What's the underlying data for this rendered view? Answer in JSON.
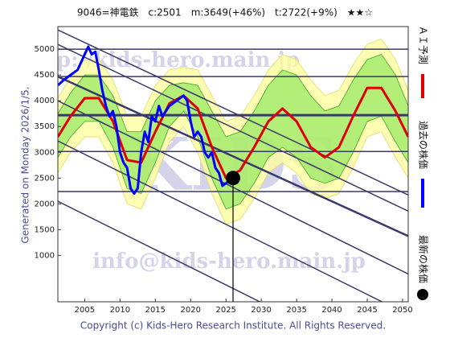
{
  "chart_data": {
    "type": "line",
    "title": "9046=神電鉄　c:2501　m:3649(+46%)　t:2722(+9%)　★★☆",
    "side_text": "Generated on Monday 2026/1/5.",
    "footer": "Copyright (c) Kids-Hero Research Institute. All Rights Reserved.",
    "watermarks": [
      "http://kids-hero.main.jp",
      "KIDS",
      "info@kids-hero.main.jp"
    ],
    "xlim": [
      2001.2,
      2050.8
    ],
    "ylim": [
      100,
      5440
    ],
    "xticks": [
      2005,
      2010,
      2015,
      2020,
      2025,
      2030,
      2035,
      2040,
      2045,
      2050
    ],
    "yticks": [
      1000,
      1500,
      2000,
      2500,
      3000,
      3500,
      4000,
      4500,
      5000
    ],
    "levels": [
      5000,
      4470,
      3720,
      3016,
      2240
    ],
    "trend_lines": [
      {
        "x": [
          2001.2,
          2050.8
        ],
        "values": [
          5375,
          2172
        ]
      },
      {
        "x": [
          2001.2,
          2050.8
        ],
        "values": [
          5094,
          1859
        ]
      },
      {
        "x": [
          2001.2,
          2050.8
        ],
        "values": [
          4469,
          1375
        ]
      },
      {
        "x": [
          2001.2,
          2050.8
        ],
        "values": [
          4000,
          640
        ]
      },
      {
        "x": [
          2001.2,
          2047.1
        ],
        "values": [
          3220,
          100
        ]
      },
      {
        "x": [
          2001.2,
          2029.8
        ],
        "values": [
          2050,
          100
        ]
      }
    ],
    "bands": [
      {
        "color": "#ffff99",
        "x": [
          2001.2,
          2003,
          2005,
          2007,
          2009,
          2011,
          2013,
          2015,
          2017,
          2019,
          2021,
          2023,
          2025,
          2027,
          2029,
          2031,
          2033,
          2035,
          2037,
          2039,
          2041,
          2043,
          2045,
          2047,
          2049,
          2050.8
        ],
        "upper": [
          4050,
          4450,
          4800,
          4800,
          4400,
          3700,
          3700,
          4300,
          4600,
          4650,
          4600,
          4100,
          3600,
          3700,
          4100,
          4600,
          4900,
          4800,
          4400,
          4100,
          4200,
          4700,
          5100,
          5200,
          4800,
          4200
        ],
        "lower": [
          2600,
          3000,
          3300,
          3300,
          2800,
          2000,
          1900,
          2500,
          3200,
          3500,
          3000,
          2200,
          1600,
          1700,
          2100,
          2600,
          2800,
          2600,
          2200,
          2100,
          2200,
          2700,
          3300,
          3400,
          2900,
          2500
        ]
      },
      {
        "color": "#99e866",
        "x": [
          2001.2,
          2003,
          2005,
          2007,
          2009,
          2011,
          2013,
          2015,
          2017,
          2019,
          2021,
          2023,
          2025,
          2027,
          2029,
          2031,
          2033,
          2035,
          2037,
          2039,
          2041,
          2043,
          2045,
          2047,
          2049,
          2050.8
        ],
        "upper": [
          3750,
          4150,
          4500,
          4500,
          4100,
          3400,
          3400,
          4000,
          4300,
          4350,
          4300,
          3800,
          3300,
          3400,
          3800,
          4300,
          4600,
          4500,
          4100,
          3800,
          3900,
          4400,
          4800,
          4900,
          4500,
          3900
        ],
        "lower": [
          2900,
          3300,
          3600,
          3600,
          3100,
          2300,
          2200,
          2800,
          3500,
          3800,
          3300,
          2500,
          1900,
          2000,
          2400,
          2900,
          3100,
          2900,
          2500,
          2400,
          2500,
          3000,
          3600,
          3700,
          3200,
          2800
        ]
      }
    ],
    "series": [
      {
        "name": "ＡＩ予測",
        "color": "#e00000",
        "x": [
          2001.2,
          2003,
          2005,
          2007,
          2009,
          2011,
          2013,
          2015,
          2017,
          2019,
          2021,
          2023,
          2025,
          2027,
          2029,
          2031,
          2033,
          2035,
          2037,
          2039,
          2041,
          2043,
          2045,
          2047,
          2049,
          2050.8
        ],
        "values": [
          3300,
          3700,
          4050,
          4050,
          3600,
          2850,
          2800,
          3400,
          3950,
          4100,
          3850,
          3100,
          2500,
          2650,
          3100,
          3600,
          3850,
          3600,
          3100,
          2900,
          3100,
          3700,
          4250,
          4250,
          3800,
          3300
        ]
      },
      {
        "name": "過去の株価",
        "color": "#0000ff",
        "x": [
          2001.2,
          2002,
          2003,
          2004,
          2005,
          2005.5,
          2006,
          2006.5,
          2007,
          2007.5,
          2008,
          2008.5,
          2009,
          2009.5,
          2010,
          2010.5,
          2011,
          2011.5,
          2012,
          2012.5,
          2013,
          2013.5,
          2014,
          2014.5,
          2015,
          2015.5,
          2016,
          2017,
          2018,
          2019,
          2019.5,
          2020,
          2020.5,
          2021,
          2021.5,
          2022,
          2022.5,
          2023,
          2023.5,
          2024,
          2024.5,
          2025,
          2025.5,
          2026
        ],
        "values": [
          4300,
          4400,
          4500,
          4600,
          4900,
          5050,
          4900,
          4950,
          4600,
          4200,
          3900,
          3700,
          3800,
          3500,
          3000,
          2800,
          2700,
          2300,
          2200,
          2300,
          3000,
          3400,
          3200,
          3700,
          3600,
          3900,
          3700,
          3900,
          4000,
          4100,
          4000,
          3600,
          3300,
          3400,
          3300,
          3000,
          2900,
          3000,
          2700,
          2600,
          2350,
          2400,
          2450,
          2501
        ]
      },
      {
        "name": "最新の株価",
        "color": "#000000",
        "x": [
          2026
        ],
        "values": [
          2501
        ]
      }
    ]
  }
}
